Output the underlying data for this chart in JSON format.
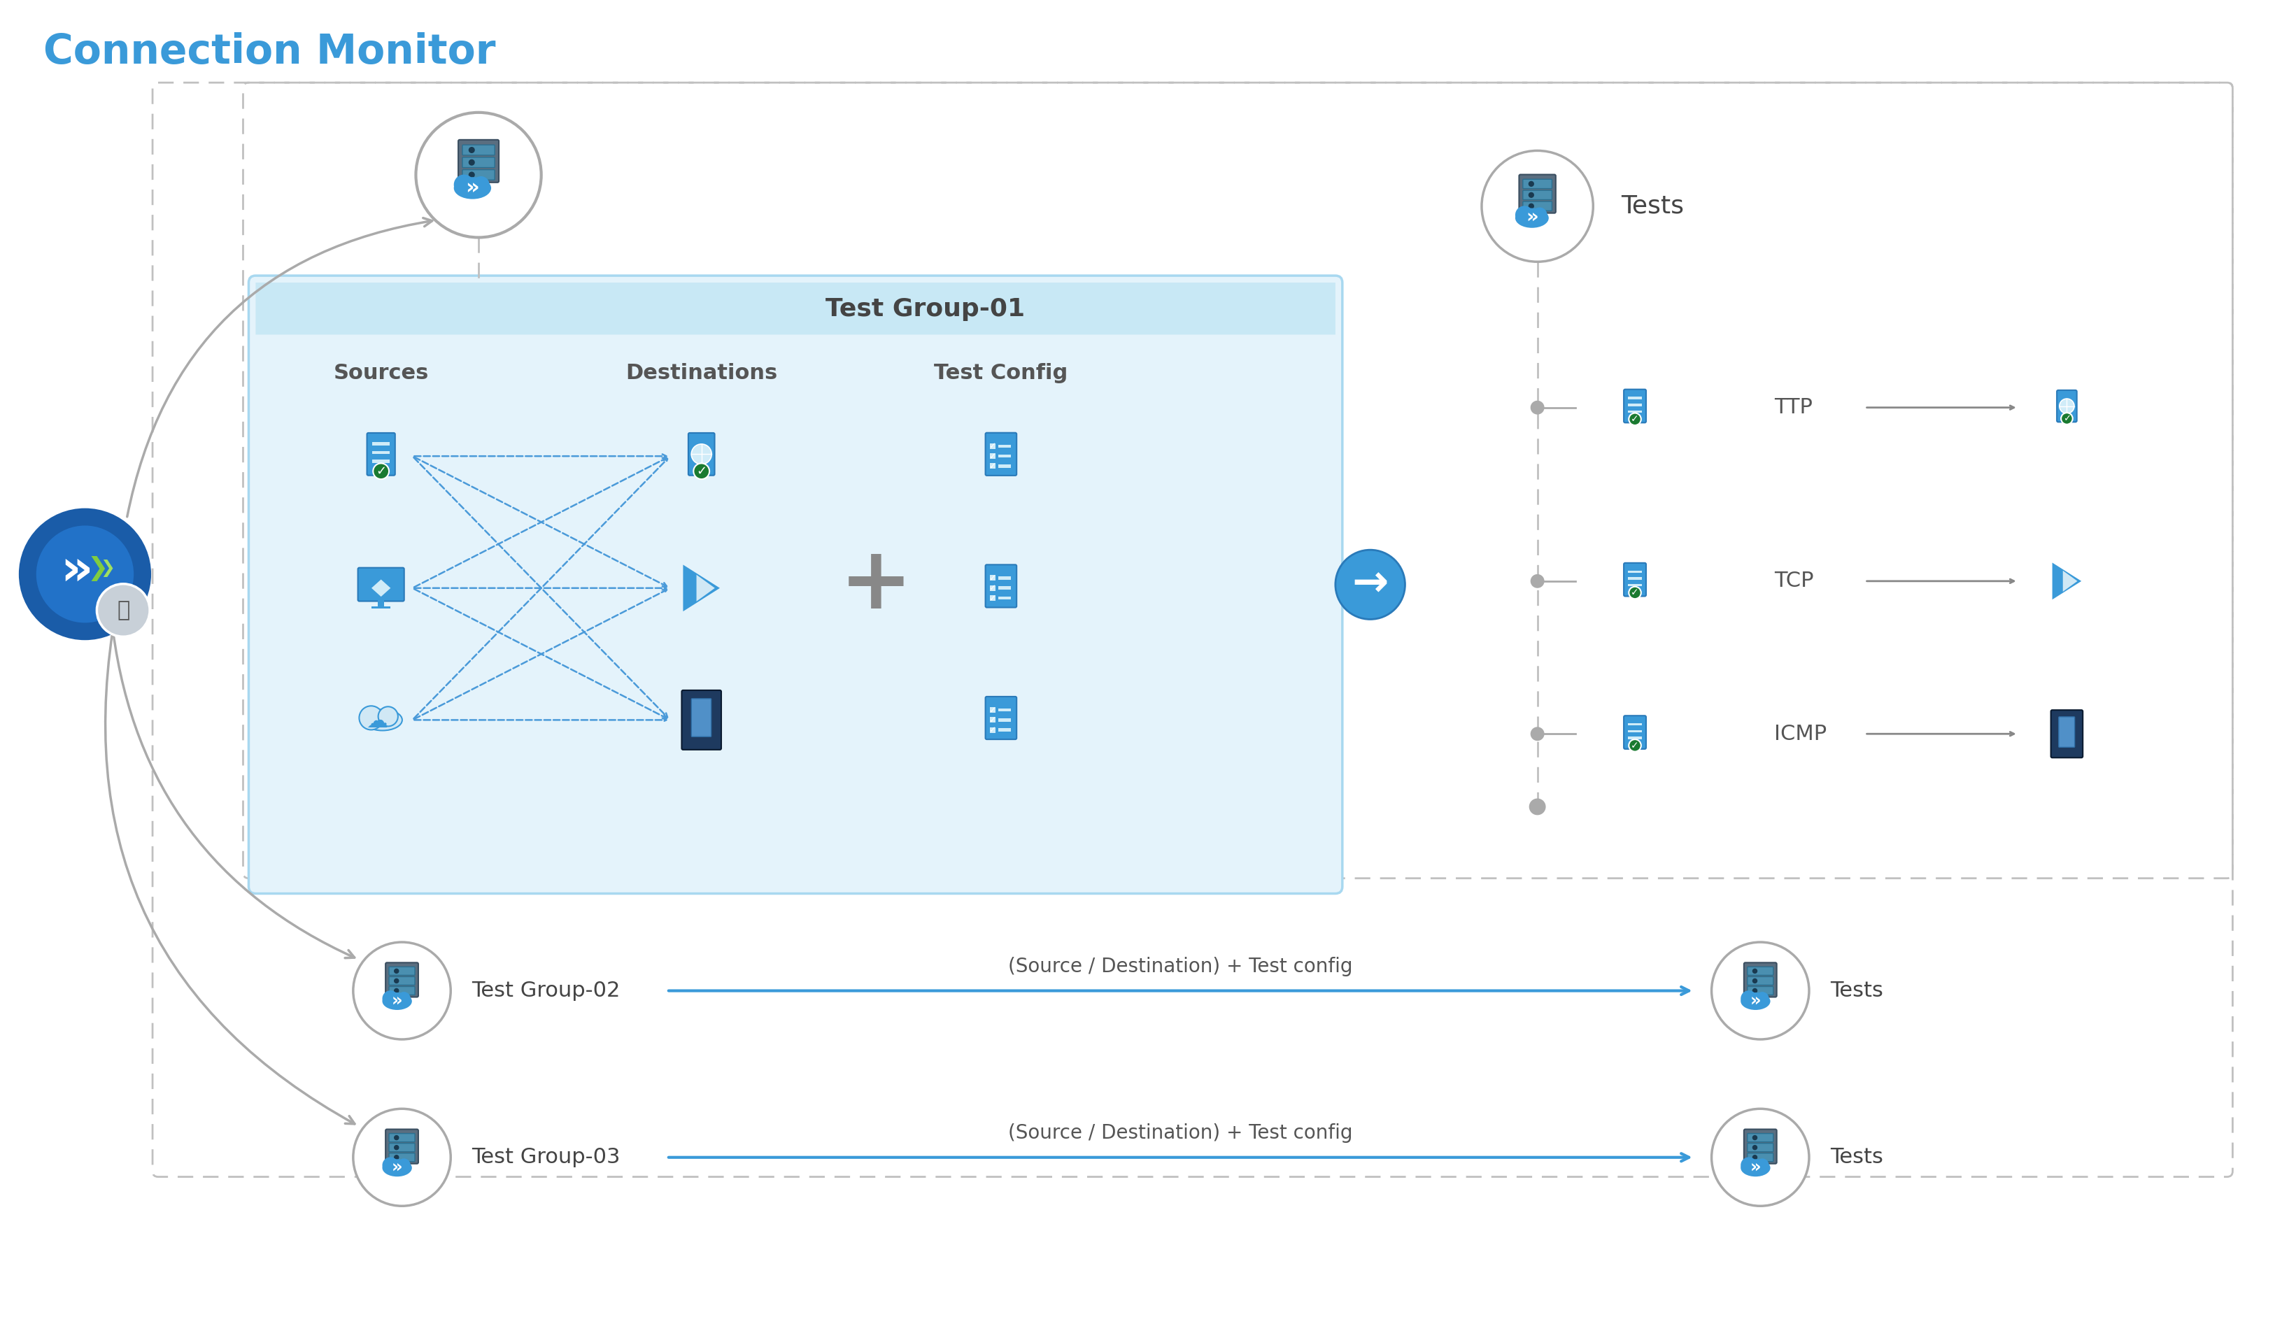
{
  "title": "Connection Monitor",
  "title_color": "#3a9ad9",
  "title_fontsize": 42,
  "bg_color": "#ffffff",
  "fig_width": 32.82,
  "fig_height": 18.93,
  "gray": "#aaaaaa",
  "dark_gray": "#666666",
  "blue": "#3a9ad9",
  "light_blue_fill": "#e4f3fb",
  "light_blue_border": "#a8d8f0",
  "dashed_border": "#c0c0c0",
  "sources_label": "Sources",
  "destinations_label": "Destinations",
  "testconfig_label": "Test Config",
  "tg01_label": "Test Group-01",
  "ttp_label": "TTP",
  "tcp_label": "TCP",
  "icmp_label": "ICMP",
  "tests_label": "Tests",
  "tg02_label": "Test Group-02",
  "tg03_label": "Test Group-03",
  "arrow_label": "(Source / Destination) + Test config"
}
